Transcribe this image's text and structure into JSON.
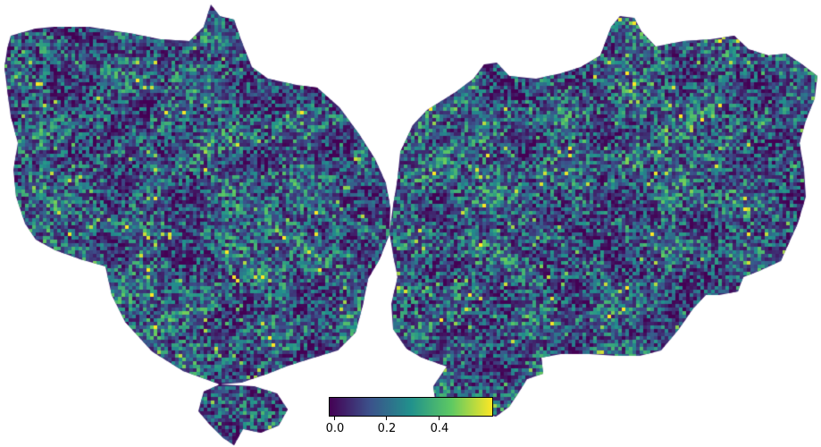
{
  "figure": {
    "background": "#ffffff",
    "hemispheres": [
      "left",
      "right"
    ]
  },
  "colorbar": {
    "colormap": "viridis",
    "range": [
      0.0,
      0.6
    ],
    "colors": [
      "#440154",
      "#3b528b",
      "#21918c",
      "#5ec962",
      "#fde725"
    ],
    "tick_values": [
      0.0,
      0.2,
      0.4
    ],
    "ticks": [
      "0.0",
      "0.2",
      "0.4"
    ]
  }
}
